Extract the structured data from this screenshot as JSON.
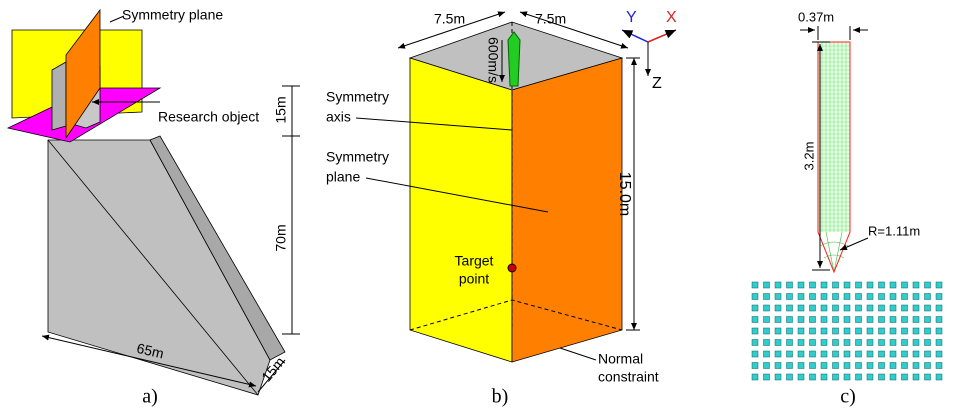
{
  "panel_a": {
    "caption": "a)",
    "symmetry_plane": "Symmetry plane",
    "research_object": "Research object",
    "dim_top": "15m",
    "dim_height": "70m",
    "dim_length": "65m",
    "dim_width": "15m"
  },
  "panel_b": {
    "caption": "b)",
    "dim_left": "7.5m",
    "dim_right": "7.5m",
    "velocity": "600m/s",
    "axes": {
      "y": "Y",
      "x": "X",
      "z": "Z"
    },
    "symmetry_axis": [
      "Symmetry",
      "axis"
    ],
    "symmetry_plane": [
      "Symmetry",
      "plane"
    ],
    "target_point": [
      "Target",
      "point"
    ],
    "dim_height": "15.0m",
    "normal_constraint": [
      "Normal",
      "constraint"
    ]
  },
  "panel_c": {
    "caption": "c)",
    "dim_diameter": "0.37m",
    "dim_length": "3.2m",
    "radius": "R=1.11m"
  }
}
